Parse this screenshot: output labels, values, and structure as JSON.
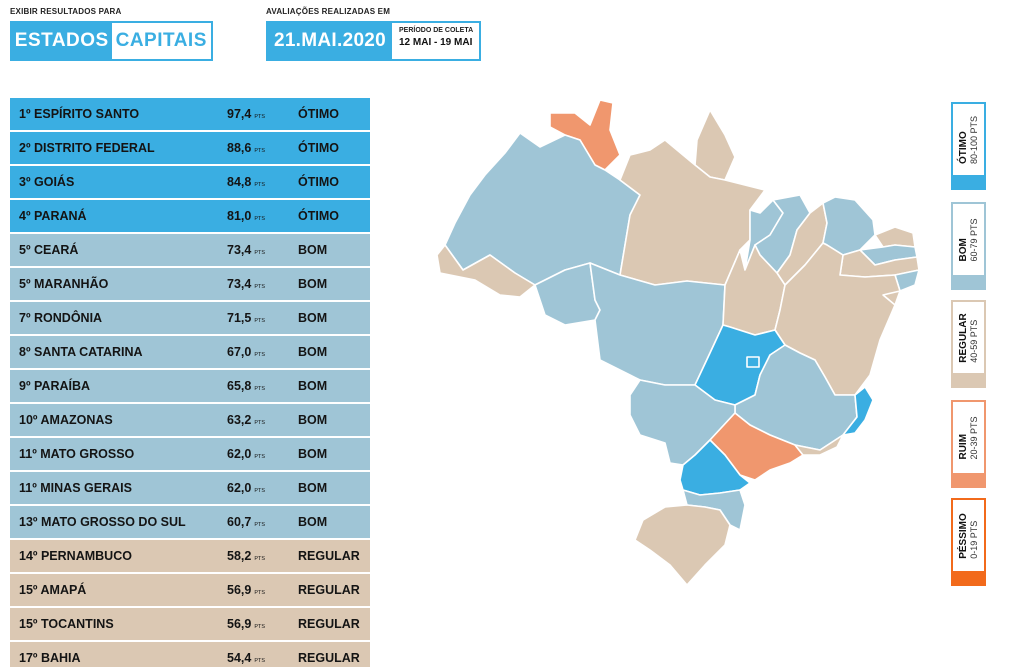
{
  "header": {
    "view_caption": "EXIBIR RESULTADOS PARA",
    "view_options": [
      "ESTADOS",
      "CAPITAIS"
    ],
    "eval_caption": "AVALIAÇÕES REALIZADAS EM",
    "date": "21.MAI.2020",
    "period_label": "PERÍODO DE COLETA",
    "period_range": "12 MAI - 19 MAI"
  },
  "ranking": [
    {
      "pos": "1º",
      "name": "ESPÍRITO SANTO",
      "score": "97,4",
      "unit": "PTS",
      "class": "ÓTIMO",
      "tier": "otimo"
    },
    {
      "pos": "2º",
      "name": "DISTRITO FEDERAL",
      "score": "88,6",
      "unit": "PTS",
      "class": "ÓTIMO",
      "tier": "otimo"
    },
    {
      "pos": "3º",
      "name": "GOIÁS",
      "score": "84,8",
      "unit": "PTS",
      "class": "ÓTIMO",
      "tier": "otimo"
    },
    {
      "pos": "4º",
      "name": "PARANÁ",
      "score": "81,0",
      "unit": "PTS",
      "class": "ÓTIMO",
      "tier": "otimo"
    },
    {
      "pos": "5º",
      "name": "CEARÁ",
      "score": "73,4",
      "unit": "PTS",
      "class": "BOM",
      "tier": "bom"
    },
    {
      "pos": "5º",
      "name": "MARANHÃO",
      "score": "73,4",
      "unit": "PTS",
      "class": "BOM",
      "tier": "bom"
    },
    {
      "pos": "7º",
      "name": "RONDÔNIA",
      "score": "71,5",
      "unit": "PTS",
      "class": "BOM",
      "tier": "bom"
    },
    {
      "pos": "8º",
      "name": "SANTA CATARINA",
      "score": "67,0",
      "unit": "PTS",
      "class": "BOM",
      "tier": "bom"
    },
    {
      "pos": "9º",
      "name": "PARAÍBA",
      "score": "65,8",
      "unit": "PTS",
      "class": "BOM",
      "tier": "bom"
    },
    {
      "pos": "10º",
      "name": "AMAZONAS",
      "score": "63,2",
      "unit": "PTS",
      "class": "BOM",
      "tier": "bom"
    },
    {
      "pos": "11º",
      "name": "MATO GROSSO",
      "score": "62,0",
      "unit": "PTS",
      "class": "BOM",
      "tier": "bom"
    },
    {
      "pos": "11º",
      "name": "MINAS GERAIS",
      "score": "62,0",
      "unit": "PTS",
      "class": "BOM",
      "tier": "bom"
    },
    {
      "pos": "13º",
      "name": "MATO GROSSO DO SUL",
      "score": "60,7",
      "unit": "PTS",
      "class": "BOM",
      "tier": "bom"
    },
    {
      "pos": "14º",
      "name": "PERNAMBUCO",
      "score": "58,2",
      "unit": "PTS",
      "class": "REGULAR",
      "tier": "regular"
    },
    {
      "pos": "15º",
      "name": "AMAPÁ",
      "score": "56,9",
      "unit": "PTS",
      "class": "REGULAR",
      "tier": "regular"
    },
    {
      "pos": "15º",
      "name": "TOCANTINS",
      "score": "56,9",
      "unit": "PTS",
      "class": "REGULAR",
      "tier": "regular"
    },
    {
      "pos": "17º",
      "name": "BAHIA",
      "score": "54,4",
      "unit": "PTS",
      "class": "REGULAR",
      "tier": "regular"
    }
  ],
  "legend": [
    {
      "name": "ÓTIMO",
      "range": "80-100 PTS",
      "color": "#3aaee2",
      "border": "#3aaee2"
    },
    {
      "name": "BOM",
      "range": "60-79 PTS",
      "color": "#9fc5d6",
      "border": "#9fc5d6"
    },
    {
      "name": "REGULAR",
      "range": "40-59 PTS",
      "color": "#dbc8b3",
      "border": "#dbc8b3"
    },
    {
      "name": "RUIM",
      "range": "20-39 PTS",
      "color": "#f0976e",
      "border": "#f0976e"
    },
    {
      "name": "PÉSSIMO",
      "range": "0-19 PTS",
      "color": "#f26a1b",
      "border": "#f26a1b"
    }
  ],
  "colors": {
    "otimo": "#3aaee2",
    "bom": "#9fc5d6",
    "regular": "#dbc8b3",
    "ruim": "#f0976e",
    "pessimo": "#f26a1b"
  }
}
